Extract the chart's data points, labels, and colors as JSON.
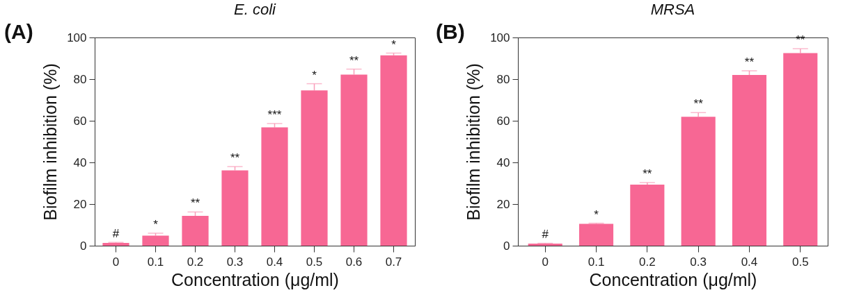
{
  "chart_data": [
    {
      "type": "bar",
      "title": "E. coli",
      "xlabel": "Concentration (μg/ml)",
      "ylabel": "Biofilm inhibition (%)",
      "categories": [
        "0",
        "0.1",
        "0.2",
        "0.3",
        "0.4",
        "0.5",
        "0.6",
        "0.7"
      ],
      "values": [
        1.3,
        4.8,
        14.3,
        36.2,
        56.8,
        74.6,
        82.2,
        91.4
      ],
      "errors": [
        [
          1.3,
          1.6
        ],
        [
          4.8,
          6.0
        ],
        [
          14.3,
          16.2
        ],
        [
          36.2,
          38.0
        ],
        [
          56.8,
          58.7
        ],
        [
          74.6,
          77.8
        ],
        [
          82.2,
          84.8
        ],
        [
          91.4,
          92.5
        ]
      ],
      "color": "#f76794",
      "ylim": [
        0,
        100
      ],
      "yticks": [
        0,
        20,
        40,
        60,
        80,
        100
      ],
      "grid": false,
      "annotations": [
        "(A)",
        {
          "text": "#",
          "x": "0",
          "y": 1.6
        },
        {
          "text": "*",
          "x": "0.1",
          "y": 6.0
        },
        {
          "text": "**",
          "x": "0.2",
          "y": 16.2
        },
        {
          "text": "**",
          "x": "0.3",
          "y": 38.0
        },
        {
          "text": "***",
          "x": "0.4",
          "y": 58.7
        },
        {
          "text": "*",
          "x": "0.5",
          "y": 77.8
        },
        {
          "text": "**",
          "x": "0.6",
          "y": 84.8
        },
        {
          "text": "*",
          "x": "0.7",
          "y": 92.5
        }
      ]
    },
    {
      "type": "bar",
      "title": "MRSA",
      "xlabel": "Concentration (μg/ml)",
      "ylabel": "Biofilm inhibition (%)",
      "categories": [
        "0",
        "0.1",
        "0.2",
        "0.3",
        "0.4",
        "0.5"
      ],
      "values": [
        1.0,
        10.5,
        29.3,
        61.9,
        82.0,
        92.5
      ],
      "errors": [
        [
          1.0,
          1.2
        ],
        [
          10.5,
          10.8
        ],
        [
          29.3,
          30.3
        ],
        [
          61.9,
          63.9
        ],
        [
          82.0,
          84.0
        ],
        [
          92.5,
          94.6
        ]
      ],
      "color": "#f76794",
      "ylim": [
        0,
        100
      ],
      "yticks": [
        0,
        20,
        40,
        60,
        80,
        100
      ],
      "grid": false,
      "annotations": [
        "(B)",
        {
          "text": "#",
          "x": "0",
          "y": 1.2
        },
        {
          "text": "*",
          "x": "0.1",
          "y": 10.8
        },
        {
          "text": "**",
          "x": "0.2",
          "y": 30.3
        },
        {
          "text": "**",
          "x": "0.3",
          "y": 63.9
        },
        {
          "text": "**",
          "x": "0.4",
          "y": 84.0
        },
        {
          "text": "**",
          "x": "0.5",
          "y": 94.6
        }
      ]
    }
  ]
}
